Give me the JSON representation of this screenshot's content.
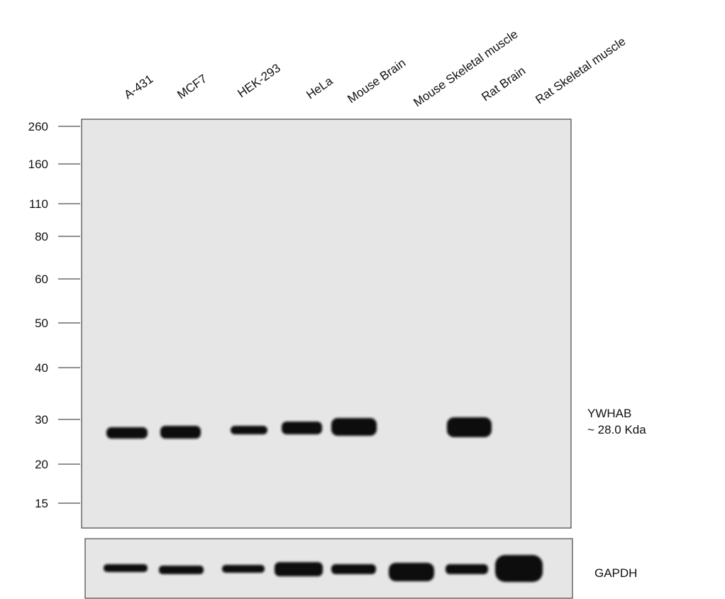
{
  "lanes": [
    "A-431",
    "MCF7",
    "HEK-293",
    "HeLa",
    "Mouse Brain",
    "Mouse Skeletal muscle",
    "Rat Brain",
    "Rat Skeletal muscle"
  ],
  "markers": [
    260,
    160,
    110,
    80,
    60,
    50,
    40,
    30,
    20,
    15
  ],
  "target": {
    "name": "YWHAB",
    "size": "~ 28.0 Kda"
  },
  "control": {
    "name": "GAPDH"
  }
}
